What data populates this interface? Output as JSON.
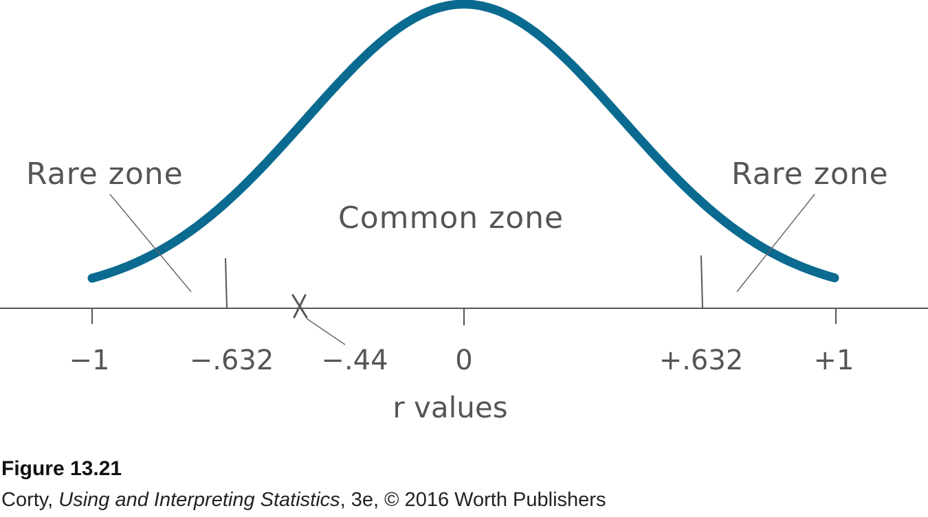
{
  "diagram": {
    "left_zone_label": "Rare zone",
    "right_zone_label": "Rare zone",
    "center_zone_label": "Common zone",
    "axis_title": "r values",
    "ticks": [
      {
        "value": -1,
        "label": "−1"
      },
      {
        "value": -0.632,
        "label": "−.632"
      },
      {
        "value": 0,
        "label": "0"
      },
      {
        "value": 0.632,
        "label": "+.632"
      },
      {
        "value": 1,
        "label": "+1"
      }
    ],
    "observed": {
      "value": -0.44,
      "label": "−.44",
      "marker": "X"
    },
    "curve_color": "#0a6a8f",
    "ink_color": "#555555"
  },
  "caption": {
    "title": "Figure 13.21",
    "author": "Corty, ",
    "book_title": "Using and Interpreting Statistics",
    "credit_rest": ", 3e, © 2016 Worth Publishers"
  }
}
